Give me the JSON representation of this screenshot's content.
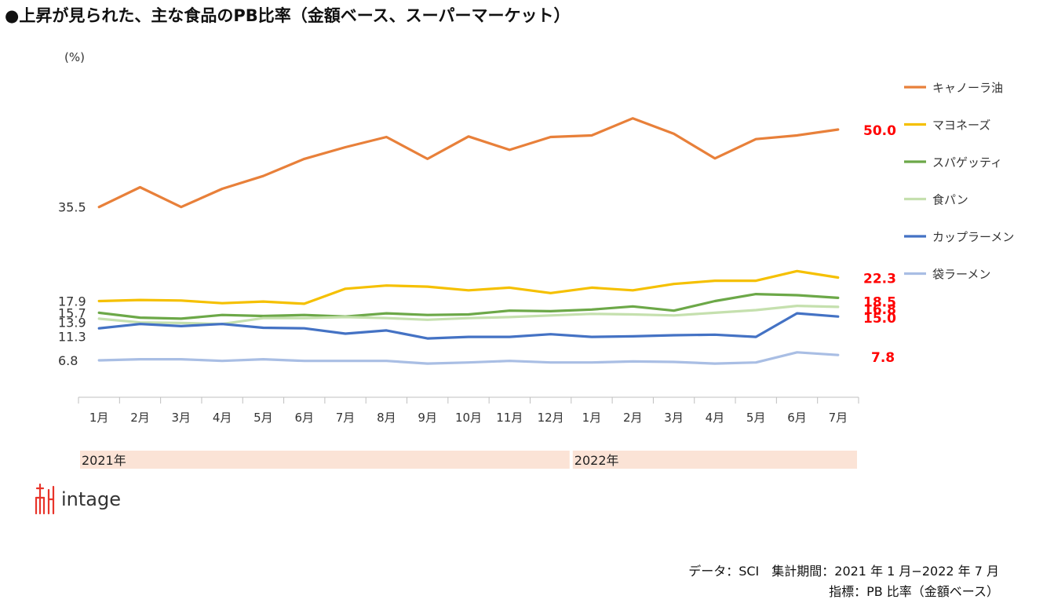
{
  "title": "●上昇が見られた、主な食品のPB比率（金額ベース、スーパーマーケット）",
  "logo_text": "intage",
  "footnote": {
    "line1": "データ：SCI　集計期間：2021 年 1 月−2022 年 7 月",
    "line2": "指標：PB 比率（金額ベース）"
  },
  "chart_data": {
    "type": "line",
    "unit_label": "(%)",
    "ytick_labels": [
      "6.8",
      "11.3",
      "13.9",
      "15.7",
      "17.9",
      "35.5"
    ],
    "ylim": [
      6.8,
      50
    ],
    "grid": false,
    "legend_position": "right",
    "x": [
      "1月",
      "2月",
      "3月",
      "4月",
      "5月",
      "6月",
      "7月",
      "8月",
      "9月",
      "10月",
      "11月",
      "12月",
      "1月",
      "2月",
      "3月",
      "4月",
      "5月",
      "6月",
      "7月"
    ],
    "year_bands": [
      {
        "label": "2021年",
        "from_index": 0,
        "to_index": 11
      },
      {
        "label": "2022年",
        "from_index": 12,
        "to_index": 18
      }
    ],
    "series": [
      {
        "name": "キャノーラ油",
        "color": "#E8803A",
        "end_label": "50.0",
        "values": [
          35.5,
          39.2,
          35.5,
          38.9,
          41.3,
          44.5,
          46.7,
          48.6,
          44.5,
          48.7,
          46.2,
          48.6,
          48.9,
          52.1,
          49.2,
          44.6,
          48.2,
          48.9,
          50.0
        ]
      },
      {
        "name": "マヨネーズ",
        "color": "#F5C000",
        "end_label": "22.3",
        "values": [
          17.9,
          18.1,
          18.0,
          17.5,
          17.8,
          17.4,
          20.2,
          20.8,
          20.6,
          19.9,
          20.4,
          19.4,
          20.4,
          19.9,
          21.1,
          21.7,
          21.7,
          23.5,
          22.3
        ]
      },
      {
        "name": "スパゲッティ",
        "color": "#6CA848",
        "end_label": "18.5",
        "values": [
          15.7,
          14.8,
          14.6,
          15.3,
          15.1,
          15.3,
          15.0,
          15.6,
          15.3,
          15.4,
          16.1,
          16.0,
          16.3,
          16.9,
          16.1,
          17.9,
          19.2,
          19.0,
          18.5
        ]
      },
      {
        "name": "食パン",
        "color": "#C5E0AE",
        "end_label": "16.8",
        "values": [
          14.6,
          13.9,
          13.8,
          13.6,
          14.7,
          14.7,
          14.9,
          14.7,
          14.4,
          14.7,
          14.9,
          15.2,
          15.5,
          15.4,
          15.2,
          15.7,
          16.2,
          17.0,
          16.8
        ]
      },
      {
        "name": "カップラーメン",
        "color": "#4472C4",
        "end_label": "15.0",
        "values": [
          12.8,
          13.6,
          13.2,
          13.6,
          12.9,
          12.8,
          11.8,
          12.4,
          10.9,
          11.2,
          11.2,
          11.7,
          11.2,
          11.3,
          11.5,
          11.6,
          11.2,
          15.6,
          15.0
        ]
      },
      {
        "name": "袋ラーメン",
        "color": "#A9BEE4",
        "end_label": "7.8",
        "values": [
          6.8,
          7.0,
          7.0,
          6.7,
          7.0,
          6.7,
          6.7,
          6.7,
          6.2,
          6.4,
          6.7,
          6.4,
          6.4,
          6.6,
          6.5,
          6.2,
          6.4,
          8.3,
          7.8
        ]
      }
    ]
  }
}
